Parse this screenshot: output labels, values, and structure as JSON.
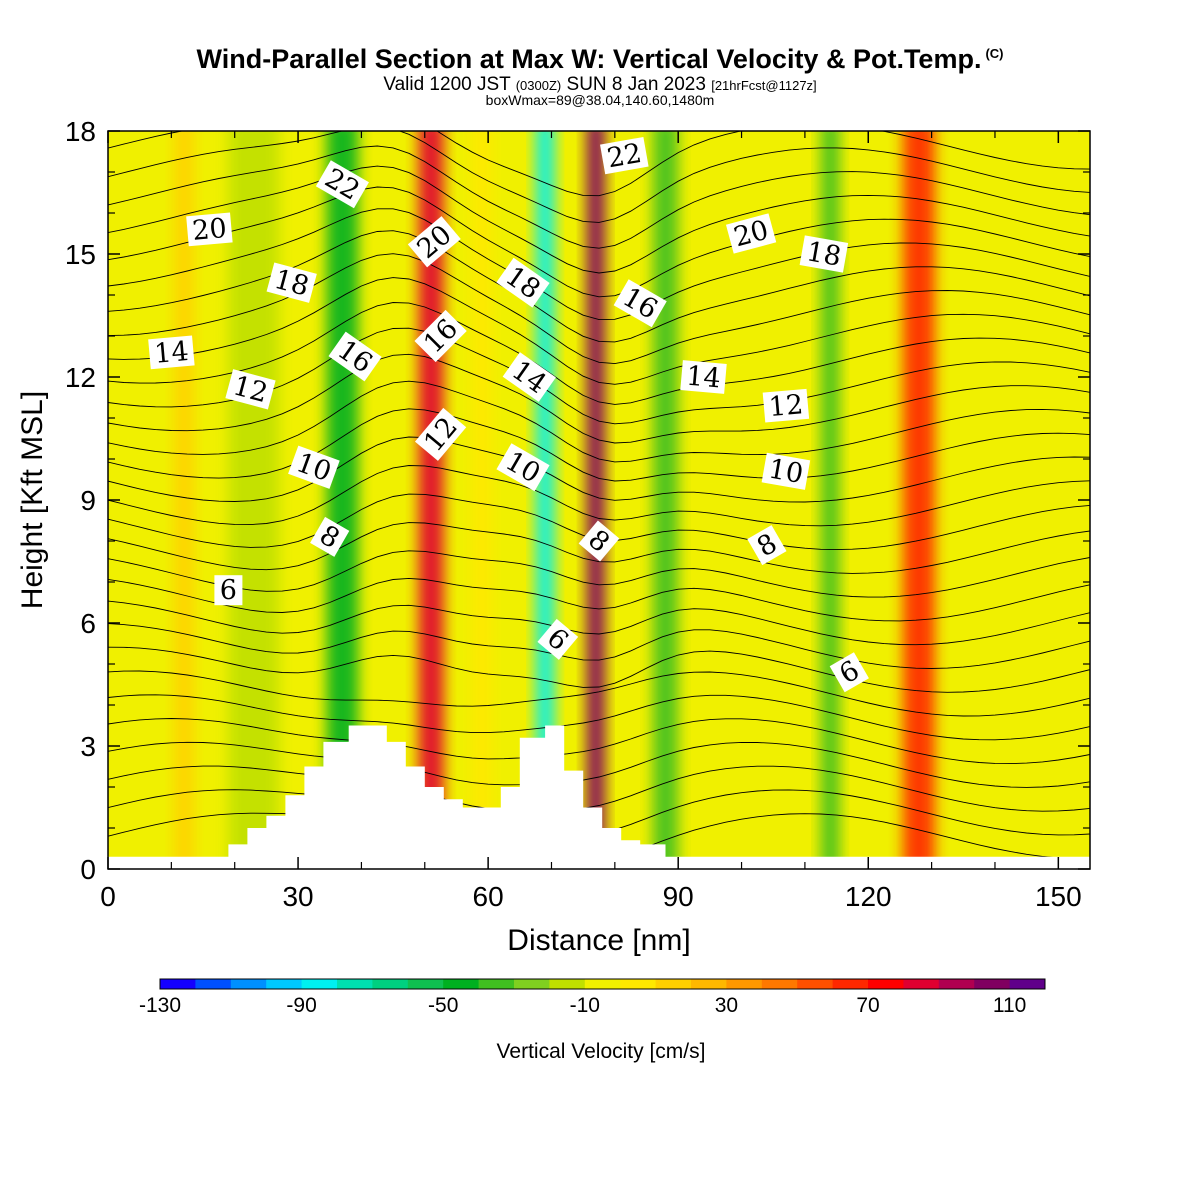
{
  "title": {
    "main": "Wind-Parallel Section at Max W: Vertical Velocity & Pot.Temp.",
    "main_unit": "(C)",
    "valid_prefix": "Valid 1200 JST",
    "valid_utc": "(0300Z)",
    "valid_date": "SUN 8 Jan 2023",
    "valid_fcst": "[21hrFcst@1127z]",
    "box_info": "boxWmax=89@38.04,140.60,1480m"
  },
  "chart_data": {
    "type": "contour",
    "xlabel": "Distance [nm]",
    "ylabel": "Height [Kft MSL]",
    "xlim": [
      0,
      155
    ],
    "ylim": [
      0,
      18
    ],
    "x_ticks": [
      "0",
      "30",
      "60",
      "90",
      "120",
      "150"
    ],
    "x_tick_values": [
      0,
      30,
      60,
      90,
      120,
      150
    ],
    "y_ticks": [
      "0",
      "3",
      "6",
      "9",
      "12",
      "15",
      "18"
    ],
    "y_tick_values": [
      0,
      3,
      6,
      9,
      12,
      15,
      18
    ],
    "colorbar": {
      "label": "Vertical Velocity [cm/s]",
      "labels": [
        "-130",
        "-90",
        "-50",
        "-10",
        "30",
        "70",
        "110"
      ],
      "colors": [
        "#1400ff",
        "#0050ff",
        "#0090ff",
        "#00c8ff",
        "#00f0f0",
        "#00e0b0",
        "#00d080",
        "#10c050",
        "#00b020",
        "#40c020",
        "#80d020",
        "#c0e000",
        "#f0f000",
        "#ffe800",
        "#ffd000",
        "#ffb800",
        "#ff9800",
        "#ff7800",
        "#ff5000",
        "#ff2800",
        "#ff0000",
        "#e00030",
        "#b00050",
        "#800060",
        "#60008a"
      ]
    },
    "background_color": "#f0f000",
    "velocity_bands": [
      {
        "x": 12,
        "width": 3,
        "value": 10
      },
      {
        "x": 23,
        "width": 8,
        "value": -20
      },
      {
        "x": 37,
        "width": 5,
        "value": -50
      },
      {
        "x": 51,
        "width": 4,
        "value": 80
      },
      {
        "x": 59,
        "width": 3,
        "value": 0
      },
      {
        "x": 69,
        "width": 3,
        "value": -90
      },
      {
        "x": 77,
        "width": 3,
        "value": 100
      },
      {
        "x": 88,
        "width": 4,
        "value": -40
      },
      {
        "x": 114,
        "width": 3,
        "value": -40
      },
      {
        "x": 128,
        "width": 5,
        "value": 60
      }
    ],
    "terrain": {
      "x": [
        0,
        19,
        19,
        22,
        22,
        25,
        25,
        28,
        28,
        31,
        31,
        34,
        34,
        38,
        38,
        44,
        44,
        47,
        47,
        50,
        50,
        53,
        53,
        56,
        56,
        59,
        59,
        62,
        62,
        65,
        65,
        69,
        69,
        72,
        72,
        75,
        75,
        78,
        78,
        81,
        81,
        84,
        84,
        88,
        88,
        155
      ],
      "h": [
        0.3,
        0.3,
        0.6,
        0.6,
        1.0,
        1.0,
        1.3,
        1.3,
        1.8,
        1.8,
        2.5,
        2.5,
        3.1,
        3.1,
        3.5,
        3.5,
        3.1,
        3.1,
        2.5,
        2.5,
        2.0,
        2.0,
        1.7,
        1.7,
        1.5,
        1.5,
        1.5,
        1.5,
        2.0,
        2.0,
        3.2,
        3.2,
        3.5,
        3.5,
        2.4,
        2.4,
        1.5,
        1.5,
        1.0,
        1.0,
        0.7,
        0.7,
        0.6,
        0.6,
        0.3,
        0.3
      ]
    },
    "isotherm_labels": [
      {
        "text": "22",
        "x": 37,
        "y": 16.7,
        "rot": 30
      },
      {
        "text": "22",
        "x": 81.5,
        "y": 17.4,
        "rot": -10
      },
      {
        "text": "20",
        "x": 16,
        "y": 15.6,
        "rot": -5
      },
      {
        "text": "20",
        "x": 51.5,
        "y": 15.3,
        "rot": -40
      },
      {
        "text": "20",
        "x": 101.5,
        "y": 15.5,
        "rot": -15
      },
      {
        "text": "18",
        "x": 29,
        "y": 14.3,
        "rot": 15
      },
      {
        "text": "18",
        "x": 65.5,
        "y": 14.3,
        "rot": 35
      },
      {
        "text": "18",
        "x": 113,
        "y": 15.0,
        "rot": 10
      },
      {
        "text": "16",
        "x": 39,
        "y": 12.5,
        "rot": 35
      },
      {
        "text": "16",
        "x": 52.5,
        "y": 13.0,
        "rot": -45
      },
      {
        "text": "16",
        "x": 84,
        "y": 13.8,
        "rot": 30
      },
      {
        "text": "14",
        "x": 10,
        "y": 12.6,
        "rot": -5
      },
      {
        "text": "14",
        "x": 66.5,
        "y": 12.0,
        "rot": 35
      },
      {
        "text": "14",
        "x": 94,
        "y": 12.0,
        "rot": 5
      },
      {
        "text": "12",
        "x": 22.5,
        "y": 11.7,
        "rot": 15
      },
      {
        "text": "12",
        "x": 52.5,
        "y": 10.6,
        "rot": -50
      },
      {
        "text": "12",
        "x": 107,
        "y": 11.3,
        "rot": -5
      },
      {
        "text": "10",
        "x": 32.5,
        "y": 9.8,
        "rot": 20
      },
      {
        "text": "10",
        "x": 65.5,
        "y": 9.8,
        "rot": 30
      },
      {
        "text": "10",
        "x": 107,
        "y": 9.7,
        "rot": 10
      },
      {
        "text": "8",
        "x": 35,
        "y": 8.1,
        "rot": 30
      },
      {
        "text": "8",
        "x": 77.5,
        "y": 8.0,
        "rot": 40
      },
      {
        "text": "8",
        "x": 104,
        "y": 7.9,
        "rot": -30
      },
      {
        "text": "6",
        "x": 19,
        "y": 6.8,
        "rot": 0
      },
      {
        "text": "6",
        "x": 71,
        "y": 5.6,
        "rot": 40
      },
      {
        "text": "6",
        "x": 117,
        "y": 4.8,
        "rot": -30
      }
    ]
  }
}
